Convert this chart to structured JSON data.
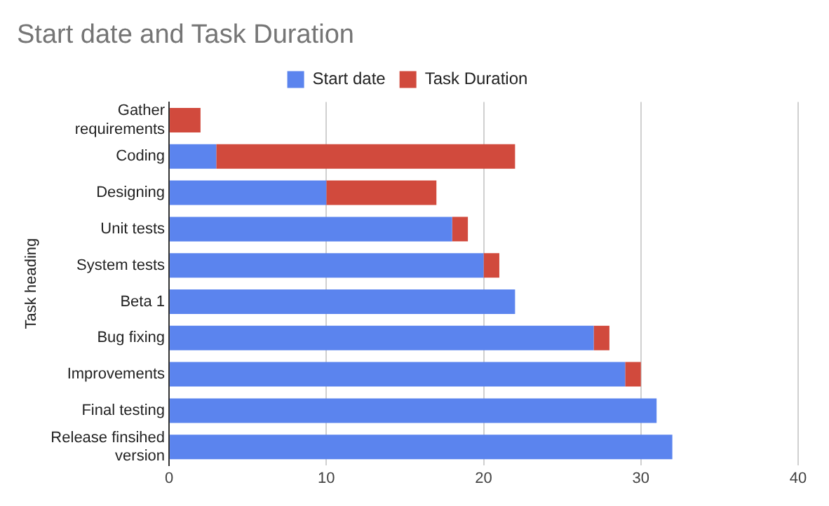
{
  "chart_data": {
    "type": "bar",
    "title": "Start date and Task Duration",
    "ylabel": "Task heading",
    "categories": [
      "Gather requirements",
      "Coding",
      "Designing",
      "Unit tests",
      "System tests",
      "Beta 1",
      "Bug fixing",
      "Improvements",
      "Final testing",
      "Release finsihed version"
    ],
    "series": [
      {
        "name": "Start date",
        "color": "#5b84ee",
        "values": [
          0,
          3,
          10,
          18,
          20,
          22,
          27,
          29,
          31,
          32
        ]
      },
      {
        "name": "Task Duration",
        "color": "#d14a3d",
        "values": [
          2,
          19,
          7,
          1,
          1,
          0,
          1,
          1,
          0,
          0
        ]
      }
    ],
    "stacked": true,
    "orientation": "horizontal",
    "xlim": [
      0,
      40
    ],
    "xticks": [
      0,
      10,
      20,
      30,
      40
    ],
    "grid": "x",
    "legend": "top"
  }
}
